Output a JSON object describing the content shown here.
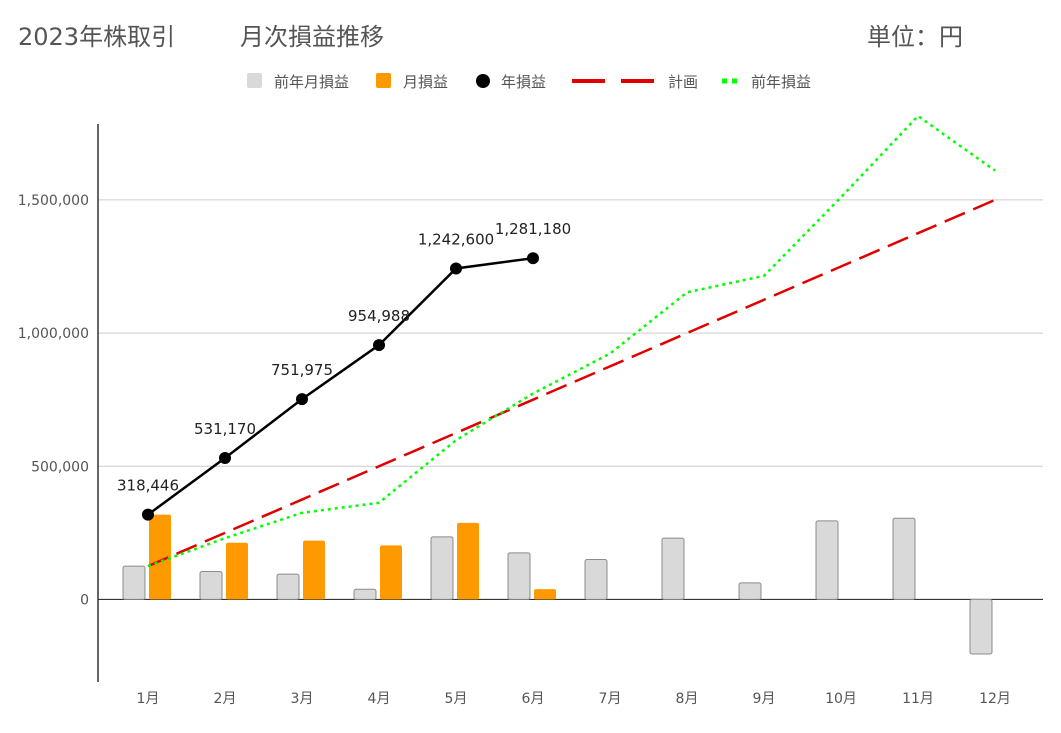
{
  "header": {
    "title": "2023年株取引",
    "subtitle": "月次損益推移",
    "unit": "単位：円"
  },
  "colors": {
    "prev_month": "#d9d9d9",
    "prev_month_border": "#8c8c8c",
    "month": "#ff9900",
    "year": "#000000",
    "plan": "#e00000",
    "prev_year": "#00ff00",
    "grid": "#cccccc",
    "axis": "#333333",
    "text": "#555555"
  },
  "chart_data": {
    "type": "bar",
    "categories": [
      "1月",
      "2月",
      "3月",
      "4月",
      "5月",
      "6月",
      "7月",
      "8月",
      "9月",
      "10月",
      "11月",
      "12月"
    ],
    "ylim": [
      -310000,
      1800000
    ],
    "yticks": [
      0,
      500000,
      1000000,
      1500000
    ],
    "ytick_labels": [
      "0",
      "500,000",
      "1,000,000",
      "1,500,000"
    ],
    "grid": true,
    "legend_position": "top",
    "series": [
      {
        "name": "前年月損益",
        "kind": "bar",
        "values": [
          125000,
          105000,
          95000,
          38000,
          235000,
          175000,
          150000,
          230000,
          62000,
          295000,
          305000,
          -205000
        ]
      },
      {
        "name": "月損益",
        "kind": "bar",
        "values": [
          318446,
          212724,
          220805,
          203013,
          287612,
          38580,
          null,
          null,
          null,
          null,
          null,
          null
        ]
      },
      {
        "name": "年損益",
        "kind": "line",
        "values": [
          318446,
          531170,
          751975,
          954988,
          1242600,
          1281180,
          null,
          null,
          null,
          null,
          null,
          null
        ],
        "labels": [
          "318,446",
          "531,170",
          "751,975",
          "954,988",
          "1,242,600",
          "1,281,180"
        ]
      },
      {
        "name": "計画",
        "kind": "line",
        "values": [
          125000,
          250000,
          375000,
          500000,
          625000,
          750000,
          875000,
          1000000,
          1125000,
          1250000,
          1375000,
          1500000
        ]
      },
      {
        "name": "前年損益",
        "kind": "line",
        "values": [
          125000,
          230000,
          325000,
          363000,
          598000,
          773000,
          923000,
          1153000,
          1215000,
          1510000,
          1815000,
          1610000
        ]
      }
    ]
  }
}
